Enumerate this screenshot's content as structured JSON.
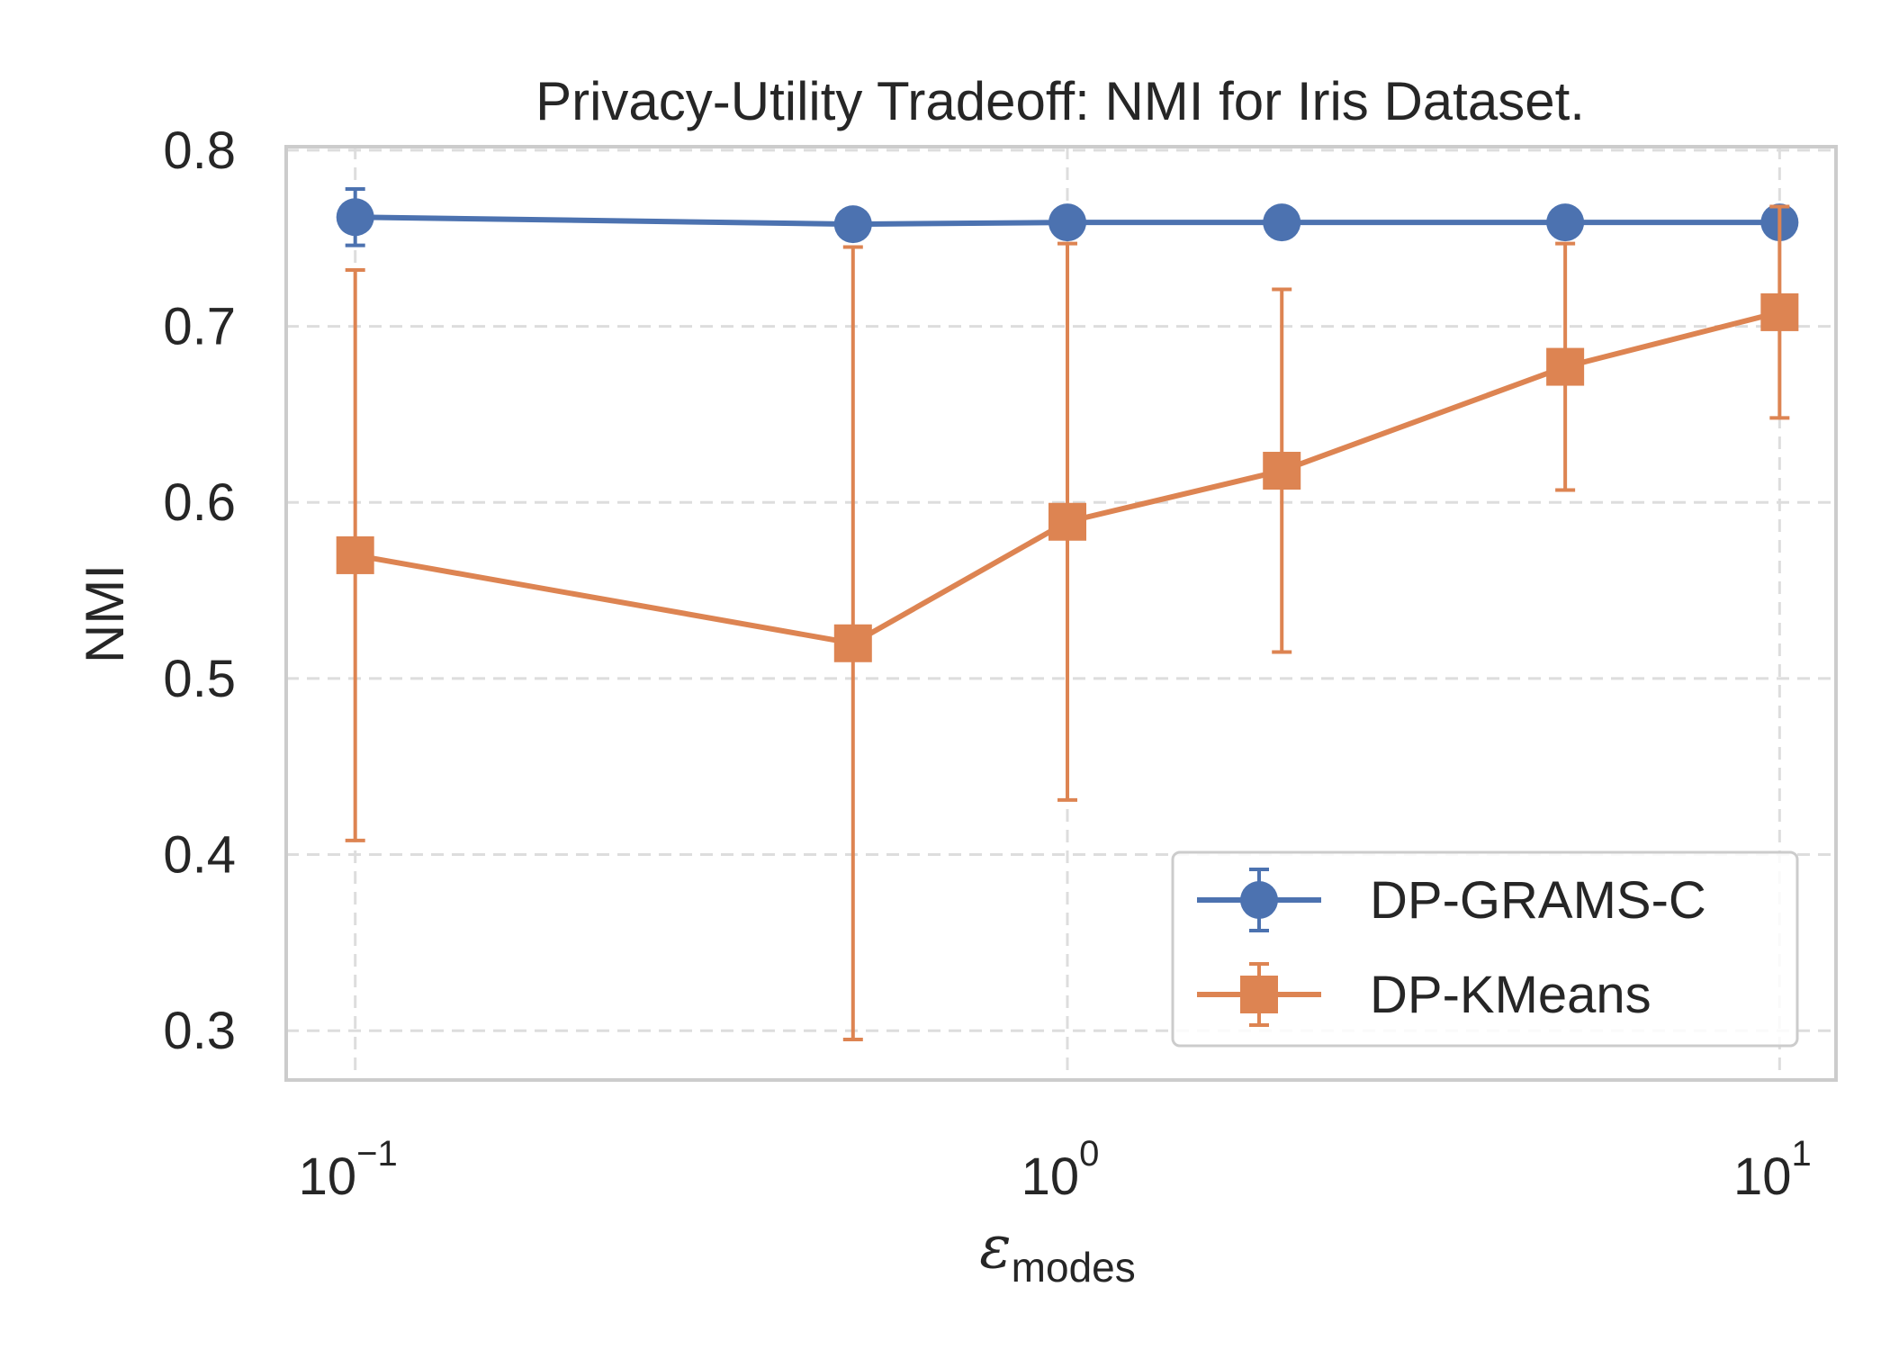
{
  "chart_data": {
    "type": "line",
    "title": "Privacy-Utility Tradeoff: NMI for Iris Dataset.",
    "xlabel": {
      "base": "ε",
      "subscript": "modes"
    },
    "ylabel": "NMI",
    "xscale": "log",
    "xlim": [
      0.08,
      12
    ],
    "ylim": [
      0.272,
      0.802
    ],
    "xticks": [
      {
        "value": 0.1,
        "base": "10",
        "exp": "−1"
      },
      {
        "value": 1,
        "base": "10",
        "exp": "0"
      },
      {
        "value": 10,
        "base": "10",
        "exp": "1"
      }
    ],
    "yticks": [
      0.3,
      0.4,
      0.5,
      0.6,
      0.7,
      0.8
    ],
    "ytick_labels": [
      "0.3",
      "0.4",
      "0.5",
      "0.6",
      "0.7",
      "0.8"
    ],
    "grid": true,
    "legend_position": "lower-right",
    "x": [
      0.1,
      0.5,
      1,
      2,
      5,
      10
    ],
    "series": [
      {
        "name": "DP-GRAMS-C",
        "color": "#4c72b0",
        "marker": "circle",
        "values": [
          0.762,
          0.758,
          0.759,
          0.759,
          0.759,
          0.759
        ],
        "errors": [
          0.016,
          0,
          0,
          0,
          0,
          0
        ]
      },
      {
        "name": "DP-KMeans",
        "color": "#dd8452",
        "marker": "square",
        "values": [
          0.57,
          0.52,
          0.589,
          0.618,
          0.677,
          0.708
        ],
        "errors": [
          0.162,
          0.225,
          0.158,
          0.103,
          0.07,
          0.06
        ]
      }
    ]
  }
}
